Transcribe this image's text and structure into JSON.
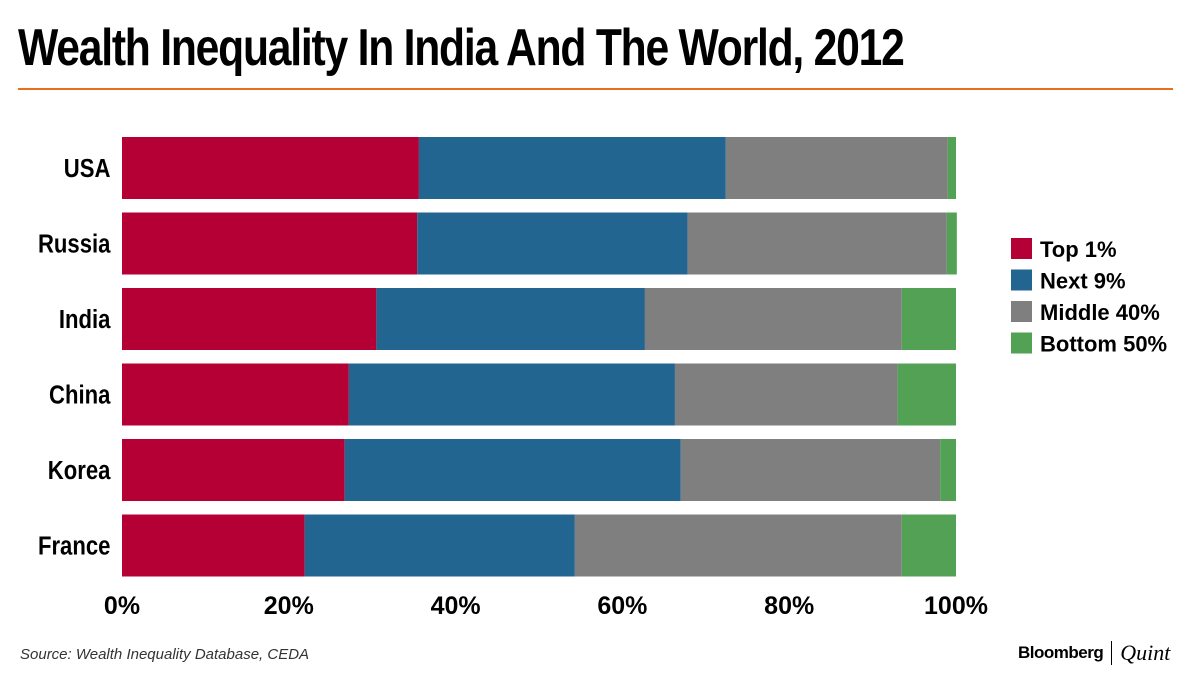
{
  "chart_data": {
    "type": "bar",
    "orientation": "horizontal",
    "stacked": true,
    "title": "Wealth Inequality In India And The World, 2012",
    "categories": [
      "USA",
      "Russia",
      "India",
      "China",
      "Korea",
      "France"
    ],
    "series": [
      {
        "name": "Top 1%",
        "color": "#b40035",
        "values": [
          35.6,
          35.4,
          30.5,
          27.2,
          26.7,
          21.9
        ]
      },
      {
        "name": "Next 9%",
        "color": "#236591",
        "values": [
          36.8,
          32.4,
          32.2,
          39.1,
          40.3,
          32.4
        ]
      },
      {
        "name": "Middle 40%",
        "color": "#7f7f7f",
        "values": [
          26.6,
          31.1,
          30.8,
          26.7,
          31.1,
          39.2
        ]
      },
      {
        "name": "Bottom 50%",
        "color": "#52a155",
        "values": [
          1.0,
          1.2,
          6.5,
          7.0,
          1.9,
          6.5
        ]
      }
    ],
    "xlim": [
      0,
      100
    ],
    "xticks": [
      "0%",
      "20%",
      "40%",
      "60%",
      "80%",
      "100%"
    ],
    "grid": false,
    "legend": "right"
  },
  "source": "Source: Wealth Inequality Database, CEDA",
  "logo": {
    "brand": "Bloomberg",
    "sub": "Quint"
  }
}
